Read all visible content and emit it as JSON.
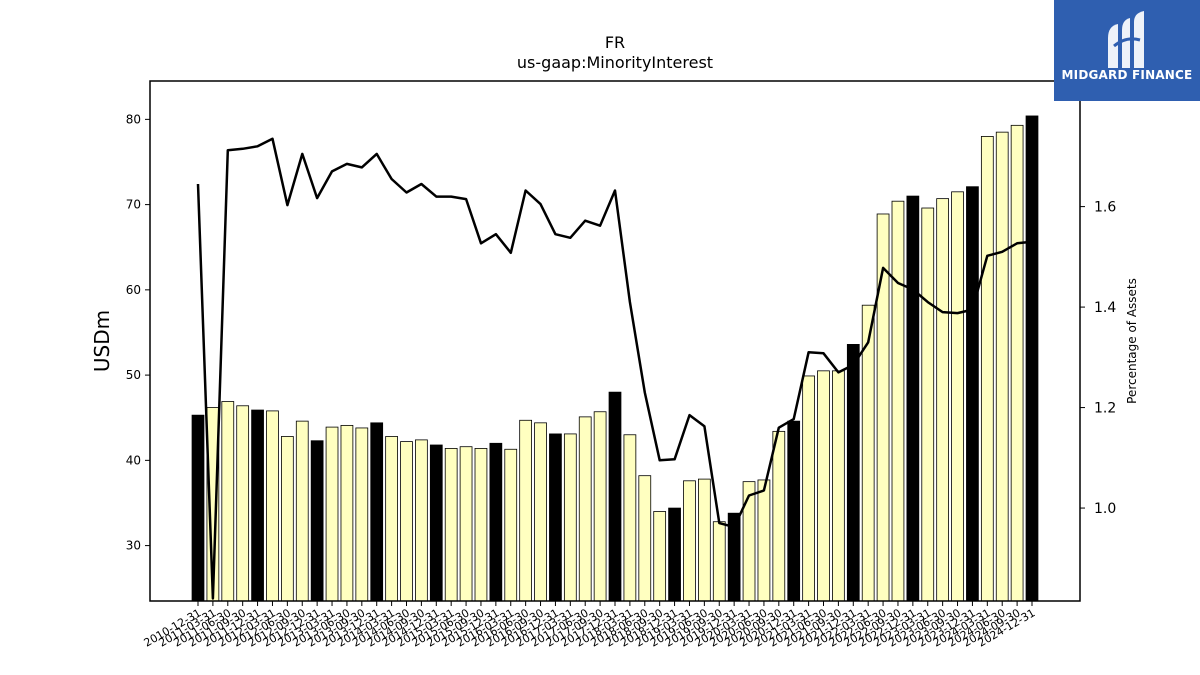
{
  "chart_data": {
    "type": "bar",
    "title": "FR",
    "subtitle": "us-gaap:MinorityInterest",
    "ylabel": "USDm",
    "y2label": "Percentage of Assets",
    "ylim": [
      23.5,
      84.5
    ],
    "y2lim": [
      0.815,
      1.85
    ],
    "yticks": [
      30,
      40,
      50,
      60,
      70,
      80
    ],
    "y2ticks": [
      1.0,
      1.2,
      1.4,
      1.6
    ],
    "grid": false,
    "legend": "none",
    "colors": {
      "bar_highlight": "#000000",
      "bar_regular": "#ffffc0",
      "bar_edge": "#000000",
      "line": "#000000"
    },
    "categories": [
      "2010-12-31",
      "2011-03-31",
      "2011-06-30",
      "2011-09-30",
      "2011-12-31",
      "2012-03-31",
      "2012-06-30",
      "2012-09-30",
      "2012-12-31",
      "2013-03-31",
      "2013-06-30",
      "2013-09-30",
      "2013-12-31",
      "2014-03-31",
      "2014-06-30",
      "2014-09-30",
      "2014-12-31",
      "2015-03-31",
      "2015-06-30",
      "2015-09-30",
      "2015-12-31",
      "2016-03-31",
      "2016-06-30",
      "2016-09-30",
      "2016-12-31",
      "2017-03-31",
      "2017-06-30",
      "2017-09-30",
      "2017-12-31",
      "2018-03-31",
      "2018-06-30",
      "2018-09-30",
      "2018-12-31",
      "2019-03-31",
      "2019-06-30",
      "2019-09-30",
      "2019-12-31",
      "2020-03-31",
      "2020-06-30",
      "2020-09-30",
      "2020-12-31",
      "2021-03-31",
      "2021-06-30",
      "2021-09-30",
      "2021-12-31",
      "2022-03-31",
      "2022-06-30",
      "2022-09-30",
      "2022-12-31",
      "2023-03-31",
      "2023-06-30",
      "2023-09-30",
      "2023-12-31",
      "2024-03-31",
      "2024-06-30",
      "2024-09-30",
      "2024-12-31"
    ],
    "x_tick_labels": [
      "2010-12-31",
      "2011-03-31",
      "2011-06-30",
      "2011-09-30",
      "2011-12-31",
      "2012-03-31",
      "2012-06-30",
      "2012-09-30",
      "2012-12-31",
      "2013-03-31",
      "2013-06-30",
      "2013-09-30",
      "2013-12-31",
      "2014-03-31",
      "2014-06-30",
      "2014-09-30",
      "2014-12-31",
      "2015-03-31",
      "2015-06-30",
      "2015-09-30",
      "2015-12-31",
      "2016-03-31",
      "2016-06-30",
      "2016-09-30",
      "2016-12-31",
      "2017-03-31",
      "2017-06-30",
      "2017-09-30",
      "2017-12-31",
      "2018-03-31",
      "2018-06-30",
      "2018-09-30",
      "2018-12-31",
      "2019-03-31",
      "2019-06-30",
      "2019-09-30",
      "2019-12-31",
      "2020-03-31",
      "2020-06-30",
      "2020-09-30",
      "2020-12-31",
      "2021-03-31",
      "2021-06-30",
      "2021-09-30",
      "2021-12-31",
      "2022-03-31",
      "2022-06-30",
      "2022-09-30",
      "2022-12-31",
      "2023-03-31",
      "2023-06-30",
      "2023-09-30",
      "2023-12-31",
      "2024-03-31",
      "2024-06-30",
      "2024-09-30",
      "2024-12-31"
    ],
    "series": [
      {
        "type": "bar",
        "axis": "left",
        "values": [
          45.3,
          46.2,
          46.9,
          46.4,
          45.9,
          45.8,
          42.8,
          44.6,
          42.3,
          43.9,
          44.1,
          43.8,
          44.4,
          42.8,
          42.2,
          42.4,
          41.8,
          41.4,
          41.6,
          41.4,
          42.0,
          41.3,
          44.7,
          44.4,
          43.1,
          43.1,
          45.1,
          45.7,
          48.0,
          43.0,
          38.2,
          34.0,
          34.4,
          37.6,
          37.8,
          32.8,
          33.8,
          37.5,
          37.7,
          43.4,
          44.6,
          49.9,
          50.5,
          50.5,
          53.6,
          58.2,
          68.9,
          70.4,
          71.0,
          69.6,
          70.7,
          71.5,
          72.1,
          78.0,
          78.5,
          79.3,
          80.4
        ],
        "highlight": [
          true,
          false,
          false,
          false,
          true,
          false,
          false,
          false,
          true,
          false,
          false,
          false,
          true,
          false,
          false,
          false,
          true,
          false,
          false,
          false,
          true,
          false,
          false,
          false,
          true,
          false,
          false,
          false,
          true,
          false,
          false,
          false,
          true,
          false,
          false,
          false,
          true,
          false,
          false,
          false,
          true,
          false,
          false,
          false,
          true,
          false,
          false,
          false,
          true,
          false,
          false,
          false,
          true,
          false,
          false,
          false,
          true
        ]
      },
      {
        "type": "line",
        "axis": "right",
        "values": [
          1.645,
          0.82,
          1.712,
          1.715,
          1.72,
          1.735,
          1.603,
          1.705,
          1.617,
          1.67,
          1.685,
          1.678,
          1.705,
          1.655,
          1.628,
          1.645,
          1.62,
          1.62,
          1.615,
          1.527,
          1.545,
          1.508,
          1.632,
          1.605,
          1.545,
          1.538,
          1.572,
          1.562,
          1.632,
          1.41,
          1.23,
          1.095,
          1.097,
          1.185,
          1.163,
          0.97,
          0.962,
          1.025,
          1.035,
          1.16,
          1.177,
          1.31,
          1.308,
          1.27,
          1.285,
          1.33,
          1.478,
          1.448,
          1.435,
          1.41,
          1.39,
          1.388,
          1.395,
          1.502,
          1.51,
          1.527,
          1.53
        ]
      }
    ]
  },
  "brand": {
    "name": "MIDGARD FINANCE"
  }
}
